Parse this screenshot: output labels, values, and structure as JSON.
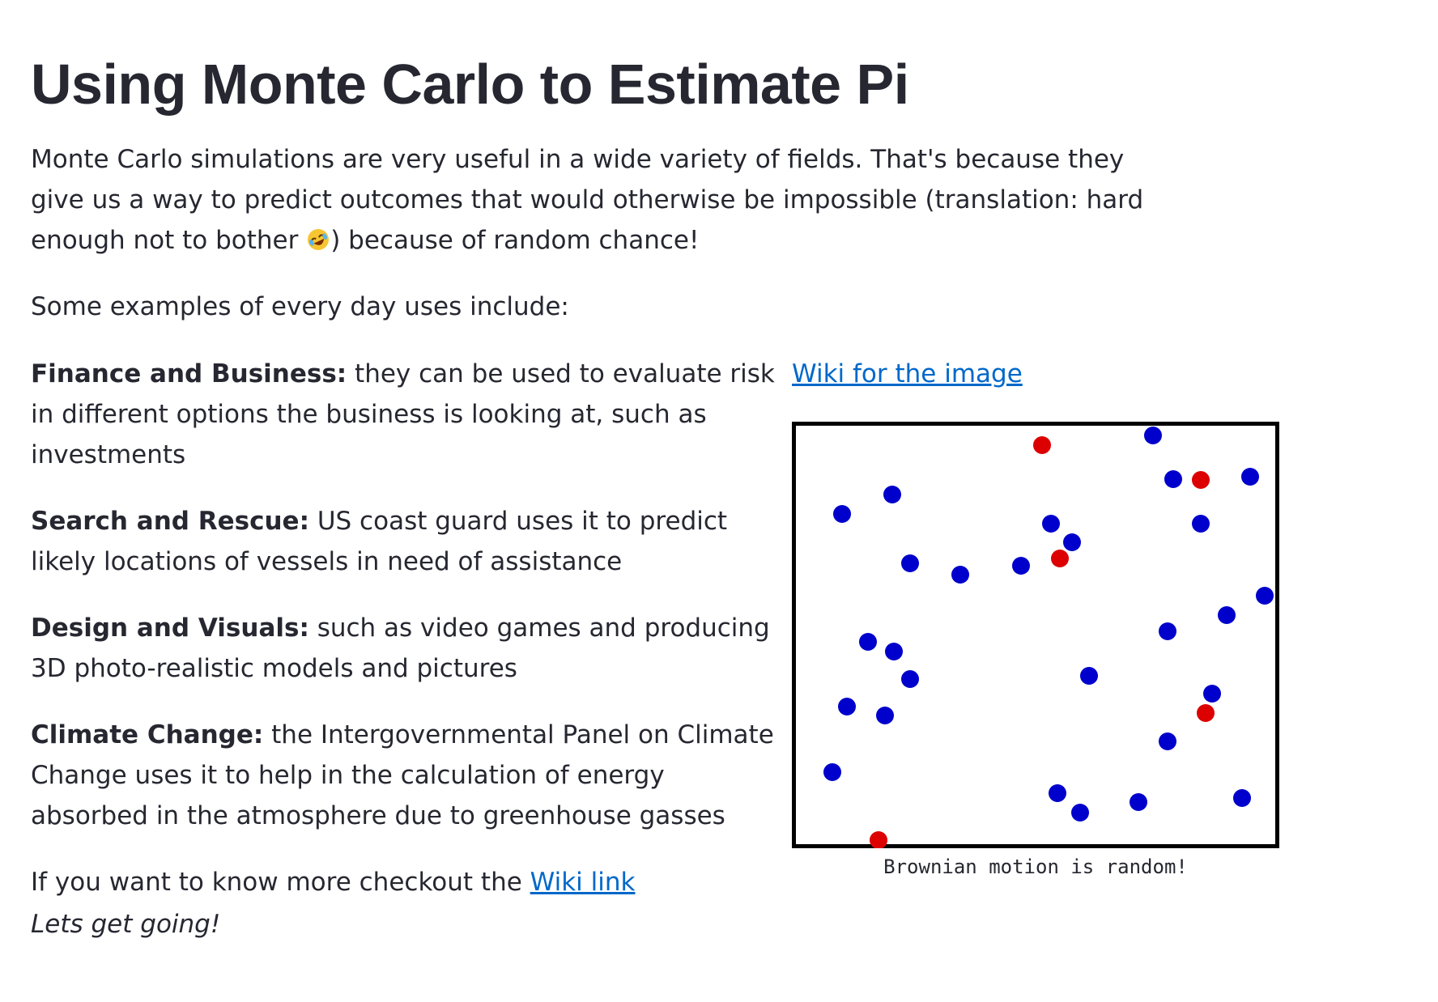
{
  "page": {
    "title": "Using Monte Carlo to Estimate Pi",
    "intro_before_emoji": "Monte Carlo simulations are very useful in a wide variety of fields. That's because they give us a way to predict outcomes that would otherwise be impossible (translation: hard enough not to bother ",
    "intro_emoji_icon": "rolling-on-floor-laughing-emoji",
    "intro_after_emoji": ") because of random chance!",
    "examples_lead": "Some examples of every day uses include:",
    "examples": [
      {
        "heading": "Finance and Business:",
        "text": " they can be used to evaluate risk in different options the business is looking at, such as investments"
      },
      {
        "heading": "Search and Rescue:",
        "text": " US coast guard uses it to predict likely locations of vessels in need of assistance"
      },
      {
        "heading": "Design and Visuals:",
        "text": " such as video games and producing 3D photo-realistic models and pictures"
      },
      {
        "heading": "Climate Change:",
        "text": " the Intergovernmental Panel on Climate Change uses it to help in the calculation of energy absorbed in the atmosphere due to greenhouse gasses"
      }
    ],
    "more_info_prefix": "If you want to know more checkout the ",
    "more_info_link": "Wiki link",
    "outro": "Lets get going!"
  },
  "figure": {
    "link_text": "Wiki for the image",
    "caption": "Brownian motion is random!",
    "colors": {
      "blue": "#0000cc",
      "red": "#dd0000",
      "frame": "#000000"
    }
  }
}
